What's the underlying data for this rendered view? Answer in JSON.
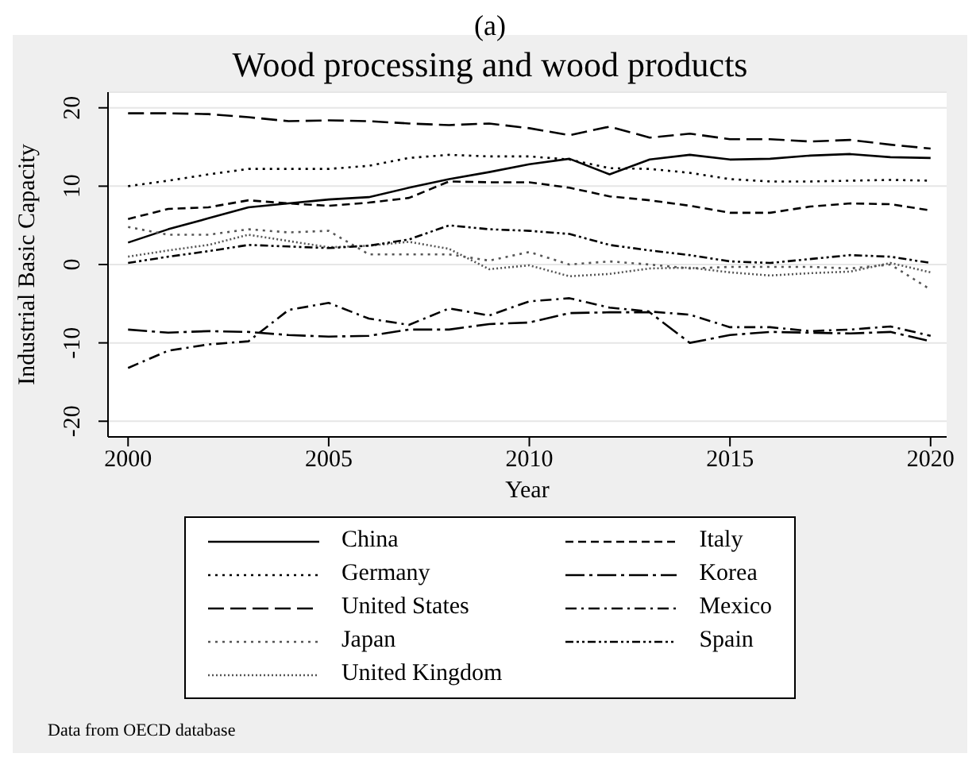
{
  "chart_data": {
    "type": "line",
    "title": "Wood processing and wood products",
    "xlabel": "Year",
    "ylabel": "Industrial Basic Capacity",
    "annotations": [
      "(a)",
      "Data from OECD database"
    ],
    "x": [
      2000,
      2001,
      2002,
      2003,
      2004,
      2005,
      2006,
      2007,
      2008,
      2009,
      2010,
      2011,
      2012,
      2013,
      2014,
      2015,
      2016,
      2017,
      2018,
      2019,
      2020
    ],
    "xlim": [
      1999.5,
      2020.4
    ],
    "xticks": [
      2000,
      2005,
      2010,
      2015,
      2020
    ],
    "ylim": [
      -22,
      22
    ],
    "yticks": [
      -20,
      -10,
      0,
      10,
      20
    ],
    "grid": "y",
    "legend": "bottom",
    "marker": "none",
    "series": [
      {
        "name": "China",
        "color": "#000000",
        "line_style": "solid",
        "values": [
          2.8,
          4.5,
          5.9,
          7.3,
          7.8,
          8.3,
          8.6,
          9.8,
          10.9,
          11.8,
          12.8,
          13.5,
          11.5,
          13.4,
          14.0,
          13.4,
          13.5,
          13.9,
          14.1,
          13.7,
          13.6
        ]
      },
      {
        "name": "Germany",
        "color": "#000000",
        "line_style": "dotted",
        "values": [
          10.0,
          10.7,
          11.5,
          12.2,
          12.2,
          12.2,
          12.6,
          13.6,
          14.0,
          13.8,
          13.8,
          13.4,
          12.3,
          12.2,
          11.7,
          10.9,
          10.6,
          10.6,
          10.7,
          10.8,
          10.7
        ]
      },
      {
        "name": "United States",
        "color": "#000000",
        "line_style": "longdash",
        "values": [
          19.3,
          19.3,
          19.2,
          18.8,
          18.3,
          18.4,
          18.3,
          18.0,
          17.8,
          18.0,
          17.4,
          16.5,
          17.6,
          16.2,
          16.7,
          16.0,
          16.0,
          15.7,
          15.9,
          15.3,
          14.8
        ]
      },
      {
        "name": "Japan",
        "color": "#555555",
        "line_style": "dotted",
        "values": [
          4.8,
          3.8,
          3.8,
          4.5,
          4.1,
          4.3,
          1.3,
          1.3,
          1.3,
          0.5,
          1.6,
          0.0,
          0.4,
          0.0,
          -0.5,
          -0.3,
          -0.3,
          -0.3,
          -0.5,
          0.0,
          -3.2
        ]
      },
      {
        "name": "United Kingdom",
        "color": "#555555",
        "line_style": "densedotted",
        "values": [
          1.0,
          1.8,
          2.5,
          3.8,
          3.0,
          2.2,
          2.4,
          2.9,
          2.0,
          -0.6,
          -0.1,
          -1.5,
          -1.2,
          -0.5,
          -0.4,
          -1.0,
          -1.4,
          -1.1,
          -0.9,
          0.2,
          -1.0
        ]
      },
      {
        "name": "Italy",
        "color": "#000000",
        "line_style": "dashed",
        "values": [
          5.8,
          7.1,
          7.3,
          8.2,
          7.8,
          7.5,
          7.9,
          8.5,
          10.6,
          10.5,
          10.5,
          9.8,
          8.7,
          8.2,
          7.5,
          6.6,
          6.6,
          7.4,
          7.8,
          7.7,
          6.9
        ]
      },
      {
        "name": "Korea",
        "color": "#000000",
        "line_style": "longdashdot",
        "values": [
          -8.3,
          -8.7,
          -8.5,
          -8.6,
          -9.0,
          -9.2,
          -9.1,
          -8.3,
          -8.3,
          -7.6,
          -7.4,
          -6.2,
          -6.1,
          -6.1,
          -10.0,
          -9.0,
          -8.6,
          -8.7,
          -8.8,
          -8.6,
          -9.8
        ]
      },
      {
        "name": "Mexico",
        "color": "#000000",
        "line_style": "dashdot",
        "values": [
          -13.2,
          -11.0,
          -10.2,
          -9.8,
          -5.8,
          -4.9,
          -6.9,
          -7.7,
          -5.6,
          -6.5,
          -4.7,
          -4.3,
          -5.5,
          -6.0,
          -6.4,
          -8.0,
          -8.0,
          -8.5,
          -8.3,
          -7.9,
          -9.1
        ]
      },
      {
        "name": "Spain",
        "color": "#000000",
        "line_style": "dashdotdot",
        "values": [
          0.2,
          1.0,
          1.7,
          2.5,
          2.3,
          2.1,
          2.4,
          3.2,
          5.0,
          4.5,
          4.3,
          3.9,
          2.5,
          1.8,
          1.2,
          0.4,
          0.2,
          0.7,
          1.2,
          1.0,
          0.2
        ]
      }
    ]
  }
}
